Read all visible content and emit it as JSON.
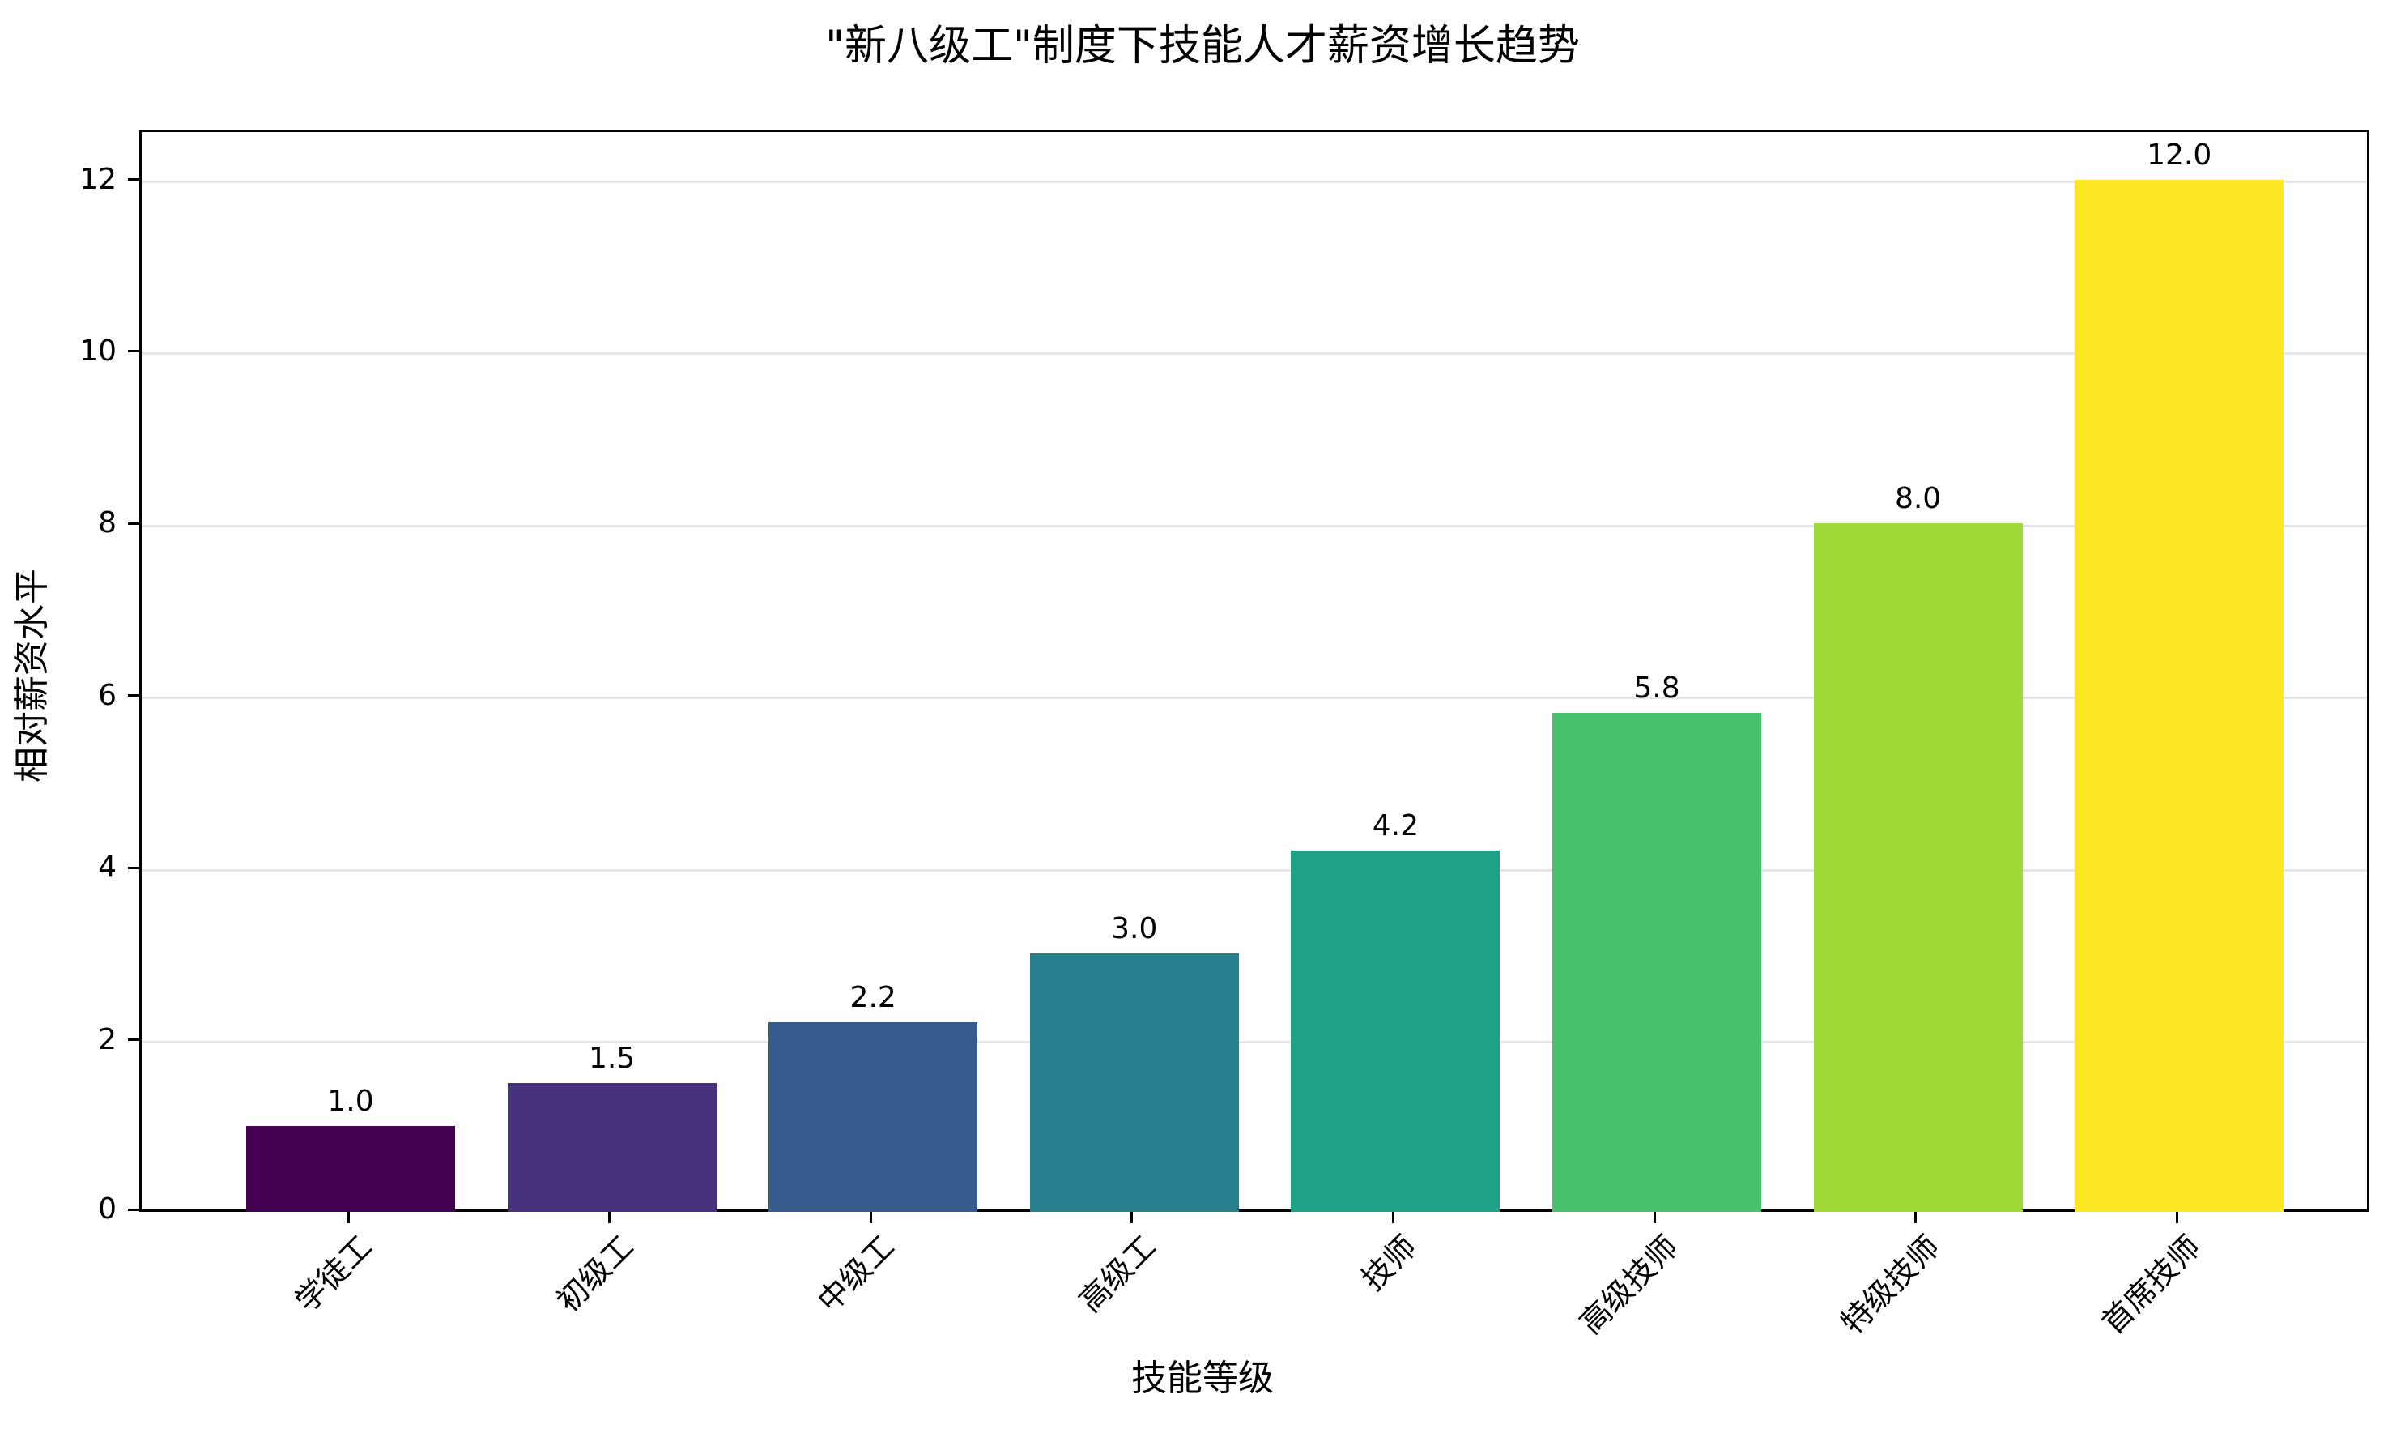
{
  "chart_data": {
    "type": "bar",
    "title": "\"新八级工\"制度下技能人才薪资增长趋势",
    "xlabel": "技能等级",
    "ylabel": "相对薪资水平",
    "categories": [
      "学徒工",
      "初级工",
      "中级工",
      "高级工",
      "技师",
      "高级技师",
      "特级技师",
      "首席技师"
    ],
    "values": [
      1.0,
      1.5,
      2.2,
      3.0,
      4.2,
      5.8,
      8.0,
      12.0
    ],
    "value_labels": [
      "1.0",
      "1.5",
      "2.2",
      "3.0",
      "4.2",
      "5.8",
      "8.0",
      "12.0"
    ],
    "colors": [
      "#440154",
      "#48327d",
      "#375b8d",
      "#277f8e",
      "#1fa187",
      "#4ac16d",
      "#a0da39",
      "#fde725"
    ],
    "ylim": [
      0,
      12.58
    ],
    "yticks": [
      0,
      2,
      4,
      6,
      8,
      10,
      12
    ],
    "ytick_labels": [
      "0",
      "2",
      "4",
      "6",
      "8",
      "10",
      "12"
    ],
    "grid": {
      "axis": "y",
      "color": "#e6e6e6"
    },
    "legend": null,
    "xtick_rotation": 45
  }
}
